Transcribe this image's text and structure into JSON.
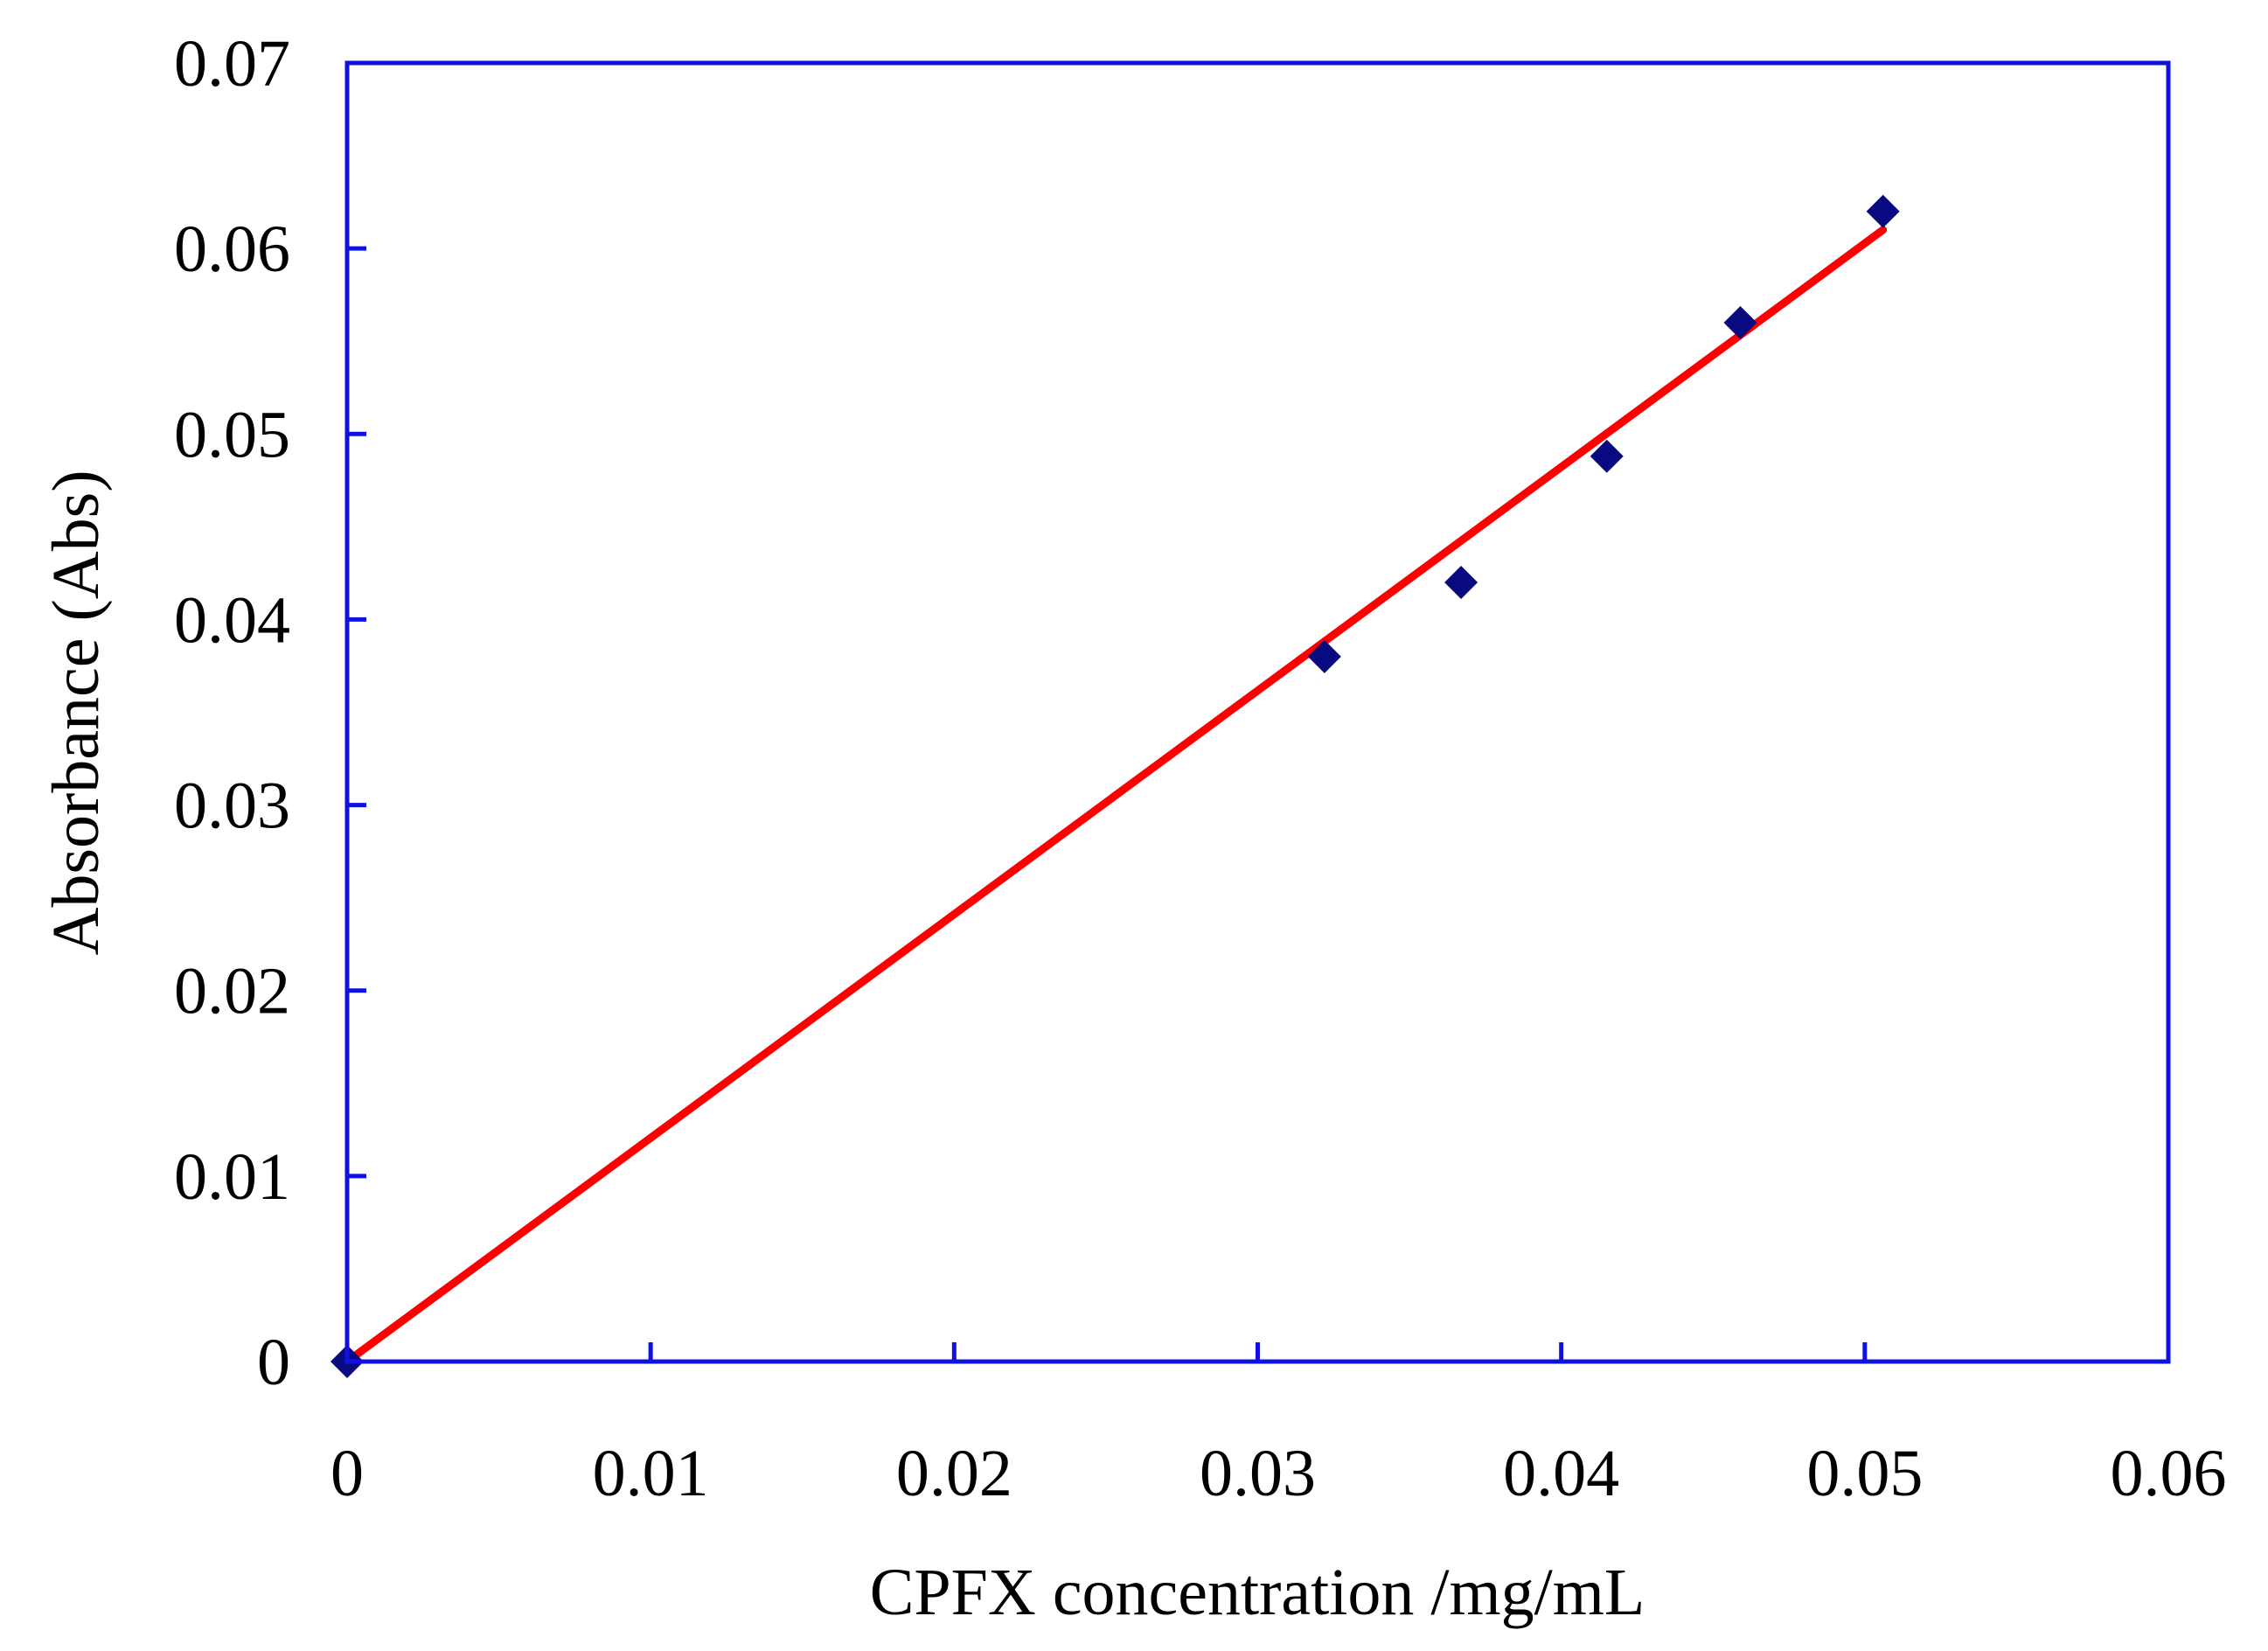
{
  "chart_data": {
    "type": "scatter",
    "title": "",
    "xlabel": "CPFX concentration /mg/mL",
    "ylabel": "Absorbance (Abs)",
    "xlim": [
      0,
      0.06
    ],
    "ylim": [
      0,
      0.07
    ],
    "x_ticks": [
      0,
      0.01,
      0.02,
      0.03,
      0.04,
      0.05,
      0.06
    ],
    "x_tick_labels": [
      "0",
      "0.01",
      "0.02",
      "0.03",
      "0.04",
      "0.05",
      "0.06"
    ],
    "y_ticks": [
      0,
      0.01,
      0.02,
      0.03,
      0.04,
      0.05,
      0.06,
      0.07
    ],
    "y_tick_labels": [
      "0",
      "0.01",
      "0.02",
      "0.03",
      "0.04",
      "0.05",
      "0.06",
      "0.07"
    ],
    "grid": false,
    "legend": "none",
    "series": [
      {
        "type": "scatter",
        "marker": "diamond",
        "points": [
          {
            "x": 0,
            "y": 0
          },
          {
            "x": 0.0322,
            "y": 0.038
          },
          {
            "x": 0.0367,
            "y": 0.042
          },
          {
            "x": 0.0415,
            "y": 0.0488
          },
          {
            "x": 0.0459,
            "y": 0.056
          },
          {
            "x": 0.0506,
            "y": 0.062
          }
        ]
      },
      {
        "type": "line",
        "role": "linear fit",
        "points": [
          {
            "x": 0,
            "y": 0
          },
          {
            "x": 0.0506,
            "y": 0.061
          }
        ]
      }
    ],
    "colors": {
      "frame": "#1010e0",
      "marker": "#0a0a80",
      "fit_line": "#ff0000",
      "text": "#000000"
    }
  }
}
